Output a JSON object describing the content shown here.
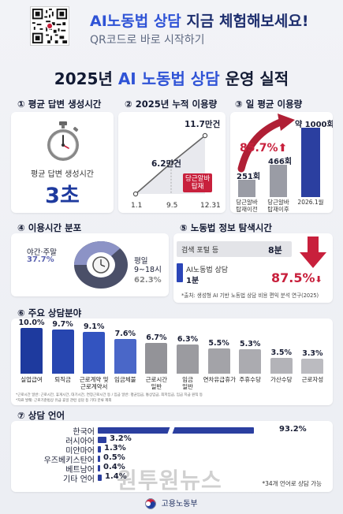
{
  "header": {
    "cta_highlight": "AI노동법 상담",
    "cta_rest": " 지금 체험해보세요!",
    "sub": "QR코드로 바로 시작하기"
  },
  "title": {
    "year": "2025년 ",
    "highlight": "AI 노동법 상담",
    "rest": " 운영 실적"
  },
  "s1": {
    "title": "① 평균 답변 생성시간",
    "label": "평균 답변 생성시간",
    "value": "3초"
  },
  "s2": {
    "title": "② 2025년 누적 이용량",
    "points": [
      {
        "x": "1.1",
        "v": 0
      },
      {
        "x": "9.5",
        "v": 6.2
      },
      {
        "x": "12.31",
        "v": 11.7
      }
    ],
    "label_mid": "6.2만건",
    "label_end": "11.7만건",
    "tag": "당근알바\n탑재"
  },
  "s3": {
    "title": "③ 일 평균 이용량",
    "bars": [
      {
        "value": 251,
        "label": "251회",
        "cat": "당근알바\n탑재이전"
      },
      {
        "value": 466,
        "label": "466회",
        "cat": "당근알바\n탑재이후"
      },
      {
        "value": 1000,
        "label": "약 1000회",
        "cat": "2026.1월"
      }
    ],
    "growth": "85.7%"
  },
  "s4": {
    "title": "④ 이용시간 분포",
    "slices": [
      {
        "name": "야간·주말",
        "value": 37.7,
        "label": "37.7%"
      },
      {
        "name": "평일\n9~18시",
        "value": 62.3,
        "label": "62.3%"
      }
    ]
  },
  "s5": {
    "title": "⑤ 노동법 정보 탐색시간",
    "row1_label": "검색 포털 등",
    "row1_value": "8분",
    "row2_label": "AI노동법 상담",
    "row2_value": "1분",
    "reduction": "87.5%",
    "source": "*출처: 생성형 AI 기반 노동법 상담 비용 편익 분석 연구(2025)"
  },
  "s6": {
    "title": "⑥ 주요 상담분야",
    "items": [
      {
        "label": "실업급여",
        "value": 10.0,
        "text": "10.0%"
      },
      {
        "label": "퇴직금",
        "value": 9.7,
        "text": "9.7%"
      },
      {
        "label": "근로계약 및\n근로계약서",
        "value": 9.1,
        "text": "9.1%"
      },
      {
        "label": "임금체불",
        "value": 7.6,
        "text": "7.6%"
      },
      {
        "label": "근로시간\n일반",
        "value": 6.7,
        "text": "6.7%"
      },
      {
        "label": "임금\n일반",
        "value": 6.3,
        "text": "6.3%"
      },
      {
        "label": "연차유급휴가",
        "value": 5.5,
        "text": "5.5%"
      },
      {
        "label": "주휴수당",
        "value": 5.3,
        "text": "5.3%"
      },
      {
        "label": "가산수당",
        "value": 3.5,
        "text": "3.5%"
      },
      {
        "label": "근로자성",
        "value": 3.3,
        "text": "3.3%"
      }
    ],
    "note1": "*근로시간 일반: 근로시간, 휴게시간, 대기시간, 연장근로시간 등 / 임금 일반: 평균임금, 통상임금, 최저임금, 임금 지급 원칙 등",
    "note2": "*자료 발췌: 근로기준법상 유급 휴일 관련 상담 등 기타 분류 제외"
  },
  "s7": {
    "title": "⑦ 상담 언어",
    "items": [
      {
        "label": "한국어",
        "value": 93.2,
        "text": "93.2%"
      },
      {
        "label": "러시아어",
        "value": 3.2,
        "text": "3.2%"
      },
      {
        "label": "미얀마어",
        "value": 1.3,
        "text": "1.3%"
      },
      {
        "label": "우즈베키스탄어",
        "value": 0.5,
        "text": "0.5%"
      },
      {
        "label": "베트남어",
        "value": 0.4,
        "text": "0.4%"
      },
      {
        "label": "기타 언어",
        "value": 1.4,
        "text": "1.4%"
      }
    ],
    "note": "*34개 언어로 상담 가능"
  },
  "footer": "고용노동부",
  "watermark": "원투원뉴스"
}
